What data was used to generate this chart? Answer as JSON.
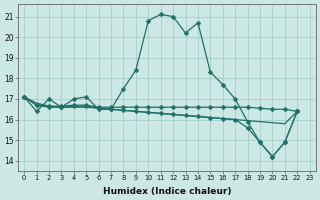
{
  "xlabel": "Humidex (Indice chaleur)",
  "background_color": "#cce8e4",
  "grid_color": "#a8ceca",
  "line_color": "#1e7068",
  "xlim": [
    -0.5,
    23.5
  ],
  "ylim": [
    13.5,
    21.6
  ],
  "yticks": [
    14,
    15,
    16,
    17,
    18,
    19,
    20,
    21
  ],
  "xticks": [
    0,
    1,
    2,
    3,
    4,
    5,
    6,
    7,
    8,
    9,
    10,
    11,
    12,
    13,
    14,
    15,
    16,
    17,
    18,
    19,
    20,
    21,
    22,
    23
  ],
  "s1_x": [
    0,
    1,
    2,
    3,
    4,
    5,
    6,
    7,
    8,
    9,
    10,
    11,
    12,
    13,
    14,
    15,
    16,
    17,
    18,
    19,
    20,
    21,
    22
  ],
  "s1_y": [
    17.1,
    16.4,
    17.0,
    16.6,
    17.0,
    17.1,
    16.5,
    16.5,
    17.5,
    18.4,
    20.8,
    21.1,
    21.0,
    20.2,
    20.7,
    18.3,
    17.7,
    17.0,
    15.9,
    14.9,
    14.2,
    14.9,
    16.4
  ],
  "s2_x": [
    0,
    1,
    2,
    3,
    4,
    5,
    6,
    7,
    8,
    9,
    10,
    11,
    12,
    13,
    14,
    15,
    16,
    17,
    18,
    19,
    20,
    21,
    22
  ],
  "s2_y": [
    17.1,
    16.7,
    16.65,
    16.65,
    16.7,
    16.7,
    16.6,
    16.6,
    16.6,
    16.6,
    16.6,
    16.6,
    16.6,
    16.6,
    16.6,
    16.6,
    16.6,
    16.6,
    16.6,
    16.55,
    16.5,
    16.5,
    16.4
  ],
  "s3_x": [
    0,
    1,
    2,
    3,
    4,
    5,
    6,
    7,
    8,
    9,
    10,
    11,
    12,
    13,
    14,
    15,
    16,
    17,
    18,
    19,
    20,
    21,
    22
  ],
  "s3_y": [
    17.1,
    16.8,
    16.65,
    16.6,
    16.6,
    16.6,
    16.55,
    16.5,
    16.45,
    16.4,
    16.35,
    16.3,
    16.25,
    16.2,
    16.15,
    16.1,
    16.05,
    16.0,
    15.95,
    15.9,
    15.85,
    15.8,
    16.4
  ],
  "s4_x": [
    0,
    1,
    2,
    3,
    4,
    5,
    6,
    7,
    8,
    9,
    10,
    11,
    12,
    13,
    14,
    15,
    16,
    17,
    18,
    19,
    20,
    21,
    22
  ],
  "s4_y": [
    17.1,
    16.7,
    16.6,
    16.6,
    16.65,
    16.65,
    16.55,
    16.5,
    16.45,
    16.4,
    16.35,
    16.3,
    16.25,
    16.2,
    16.15,
    16.1,
    16.05,
    16.0,
    15.6,
    14.9,
    14.2,
    14.9,
    16.4
  ]
}
